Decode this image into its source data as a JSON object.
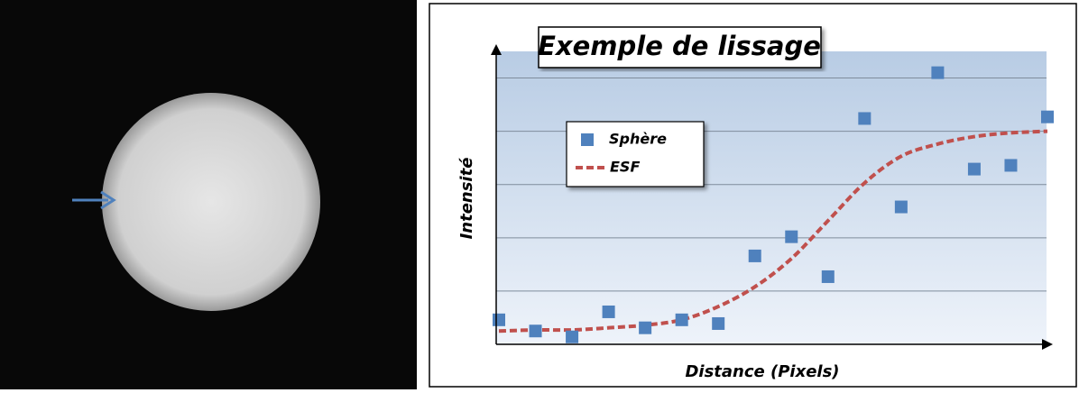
{
  "chart_data": {
    "type": "scatter",
    "title": "Exemple de lissage",
    "x_label": "Distance (Pixels)",
    "y_label": "Intensité",
    "x": [
      0,
      1,
      2,
      3,
      4,
      5,
      6,
      7,
      8,
      9,
      10,
      11,
      12,
      13,
      14,
      15
    ],
    "xlim": [
      0,
      15
    ],
    "ylim": [
      0,
      5.5
    ],
    "yticks": [
      1,
      2,
      3,
      4,
      5
    ],
    "grid": true,
    "series": [
      {
        "name": "Sphère",
        "color": "#4f81bd",
        "marker": "square",
        "values": [
          0.46,
          0.25,
          0.14,
          0.61,
          0.31,
          0.46,
          0.39,
          1.66,
          2.02,
          1.27,
          4.24,
          2.58,
          5.1,
          3.29,
          3.36,
          4.27
        ]
      },
      {
        "name": "ESF",
        "color": "#c0504d",
        "line": "dashed",
        "values": [
          0.25,
          0.27,
          0.27,
          0.31,
          0.36,
          0.46,
          0.71,
          1.08,
          1.61,
          2.32,
          3.03,
          3.53,
          3.76,
          3.9,
          3.97,
          4.0
        ]
      }
    ]
  }
}
